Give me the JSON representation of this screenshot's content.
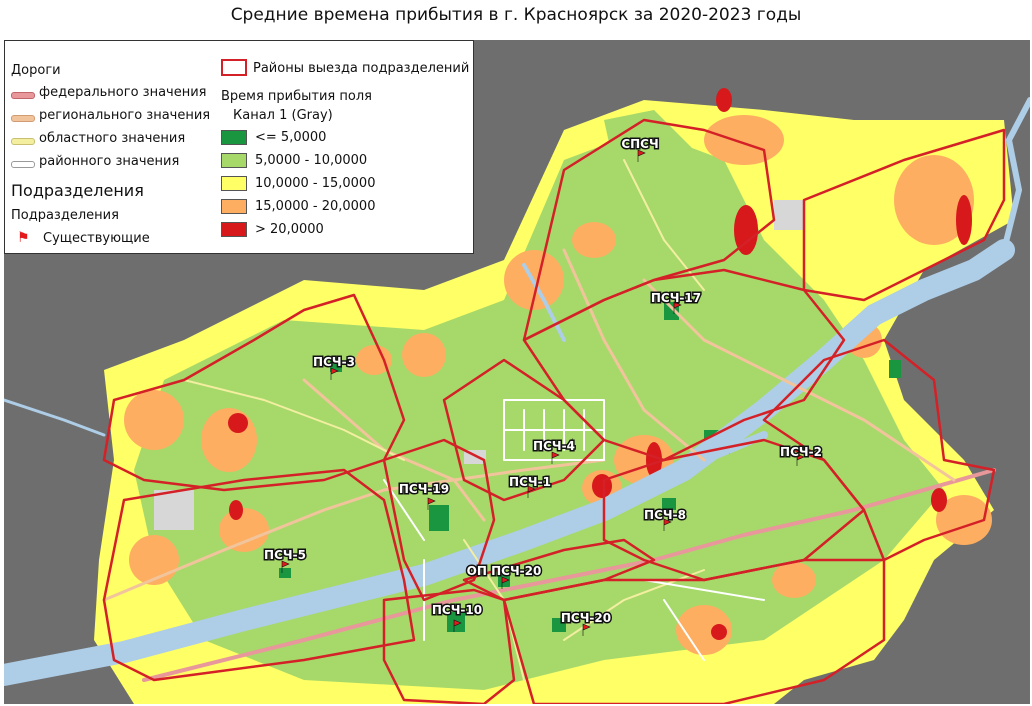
{
  "title": "Средние времена прибытия в г. Красноярск за 2020-2023 годы",
  "legend": {
    "roads_heading": "Дороги",
    "roads": [
      {
        "label": "федерального значения",
        "color": "#e8979a",
        "edge": "#c0656a"
      },
      {
        "label": "регионального значения",
        "color": "#f2c49c",
        "edge": "#d19c72"
      },
      {
        "label": "областного значения",
        "color": "#f3eea0",
        "edge": "#c8c070"
      },
      {
        "label": "районного значения",
        "color": "#ffffff",
        "edge": "#9a9a9a"
      }
    ],
    "units_heading": "Подразделения",
    "units_sub": "Подразделения",
    "unit_existing": "Существующие",
    "districts_label": "Районы выезда подразделений",
    "time_heading": "Время прибытия поля",
    "band_label": "Канал 1 (Gray)",
    "classes": [
      {
        "label": "<= 5,0000",
        "color": "#1a9641"
      },
      {
        "label": "5,0000 - 10,0000",
        "color": "#a6d96a"
      },
      {
        "label": "10,0000 - 15,0000",
        "color": "#ffff66"
      },
      {
        "label": "15,0000 - 20,0000",
        "color": "#fdae61"
      },
      {
        "label": "> 20,0000",
        "color": "#d7191c"
      }
    ]
  },
  "colors": {
    "background": "#6e6e6e",
    "river": "#aecde6",
    "district_border": "#d42027",
    "flag": "#e31a1c"
  },
  "stations": [
    {
      "label": "СПСЧ"
    },
    {
      "label": "ПСЧ-17"
    },
    {
      "label": "ПСЧ-3"
    },
    {
      "label": "ПСЧ-4"
    },
    {
      "label": "ПСЧ-2"
    },
    {
      "label": "ПСЧ-1"
    },
    {
      "label": "ПСЧ-19"
    },
    {
      "label": "ПСЧ-8"
    },
    {
      "label": "ПСЧ-5"
    },
    {
      "label": "ОП ПСЧ-20"
    },
    {
      "label": "ПСЧ-10"
    },
    {
      "label": "ПСЧ-20"
    }
  ]
}
